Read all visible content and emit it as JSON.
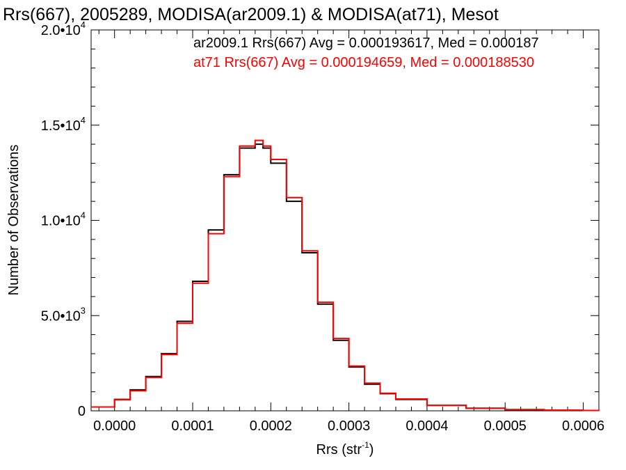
{
  "chart_data": {
    "type": "line",
    "title": "Rrs(667), 2005289, MODISA(ar2009.1) & MODISA(at71), Mesot",
    "xlabel": "Rrs (str",
    "xlabel_sup": "-1",
    "xlabel_end": ")",
    "ylabel": "Number of Observations",
    "xlim": [
      -3e-05,
      0.00062
    ],
    "ylim": [
      0,
      20000
    ],
    "x_ticks": [
      {
        "value": 0.0,
        "label": "0.0000"
      },
      {
        "value": 0.0001,
        "label": "0.0001"
      },
      {
        "value": 0.0002,
        "label": "0.0002"
      },
      {
        "value": 0.0003,
        "label": "0.0003"
      },
      {
        "value": 0.0004,
        "label": "0.0004"
      },
      {
        "value": 0.0005,
        "label": "0.0005"
      },
      {
        "value": 0.0006,
        "label": "0.0006"
      }
    ],
    "y_ticks": [
      {
        "value": 0,
        "label": "0",
        "exp": ""
      },
      {
        "value": 5000,
        "label": "5.0•10",
        "exp": "3"
      },
      {
        "value": 10000,
        "label": "1.0•10",
        "exp": "4"
      },
      {
        "value": 15000,
        "label": "1.5•10",
        "exp": "4"
      },
      {
        "value": 20000,
        "label": "2.0•10",
        "exp": "4"
      }
    ],
    "annotations": [
      "ar2009.1 Rrs(667) Avg = 0.000193617, Med = 0.000187",
      "at71 Rrs(667) Avg = 0.000194659, Med = 0.000188530"
    ],
    "series_colors": [
      "#000000",
      "#ff0000"
    ],
    "series": [
      {
        "x": [
          -3e-05,
          0.0,
          2e-05,
          4e-05,
          6e-05,
          8e-05,
          0.0001,
          0.00012,
          0.00014,
          0.00016,
          0.00018,
          0.00019,
          0.0002,
          0.00022,
          0.00024,
          0.00026,
          0.00028,
          0.0003,
          0.00032,
          0.00034,
          0.00036,
          0.0004,
          0.00045,
          0.0005,
          0.00055,
          0.0006,
          0.00062
        ],
        "y": [
          200,
          600,
          1100,
          1800,
          3000,
          4700,
          6800,
          9500,
          12400,
          13800,
          14000,
          13800,
          13000,
          11000,
          8300,
          5600,
          3700,
          2300,
          1400,
          900,
          600,
          280,
          130,
          60,
          35,
          20,
          15
        ]
      },
      {
        "x": [
          -3e-05,
          0.0,
          2e-05,
          4e-05,
          6e-05,
          8e-05,
          0.0001,
          0.00012,
          0.00014,
          0.00016,
          0.00018,
          0.00019,
          0.0002,
          0.00022,
          0.00024,
          0.00026,
          0.00028,
          0.0003,
          0.00032,
          0.00034,
          0.00036,
          0.0004,
          0.00045,
          0.0005,
          0.00055,
          0.0006,
          0.00062
        ],
        "y": [
          200,
          580,
          1050,
          1750,
          2950,
          4600,
          6700,
          9300,
          12300,
          13900,
          14200,
          13900,
          13200,
          11200,
          8400,
          5700,
          3800,
          2350,
          1450,
          920,
          620,
          290,
          135,
          62,
          36,
          20,
          15
        ]
      }
    ]
  }
}
